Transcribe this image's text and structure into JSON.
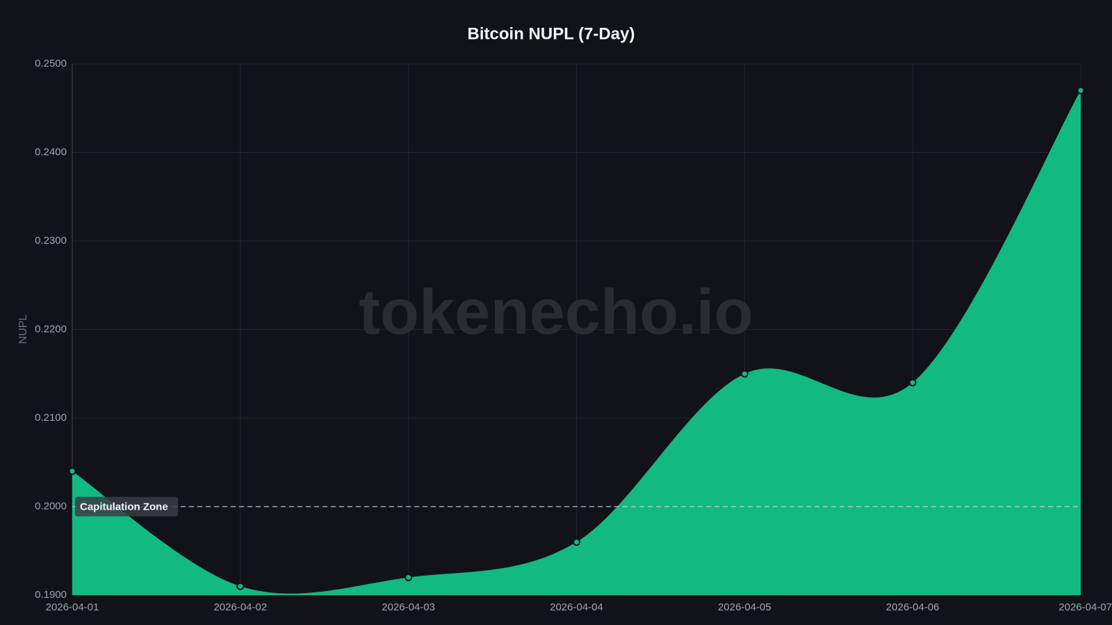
{
  "chart_data": {
    "type": "area",
    "title": "Bitcoin NUPL (7-Day)",
    "y_label": "NUPL",
    "watermark": "tokenecho.io",
    "x": [
      "2026-04-01",
      "2026-04-02",
      "2026-04-03",
      "2026-04-04",
      "2026-04-05",
      "2026-04-06",
      "2026-04-07"
    ],
    "series": [
      {
        "name": "NUPL",
        "color": "#12b981",
        "values": [
          0.204,
          0.191,
          0.192,
          0.196,
          0.215,
          0.214,
          0.247
        ]
      }
    ],
    "ylim": [
      0.19,
      0.25
    ],
    "yticks": [
      {
        "value": 0.19,
        "label": "0.1900"
      },
      {
        "value": 0.2,
        "label": "0.2000"
      },
      {
        "value": 0.21,
        "label": "0.2100"
      },
      {
        "value": 0.22,
        "label": "0.2200"
      },
      {
        "value": 0.23,
        "label": "0.2300"
      },
      {
        "value": 0.24,
        "label": "0.2400"
      },
      {
        "value": 0.25,
        "label": "0.2500"
      }
    ],
    "reference_lines": [
      {
        "value": 0.2,
        "label": "Capitulation Zone"
      }
    ],
    "grid": true,
    "legend": false
  }
}
